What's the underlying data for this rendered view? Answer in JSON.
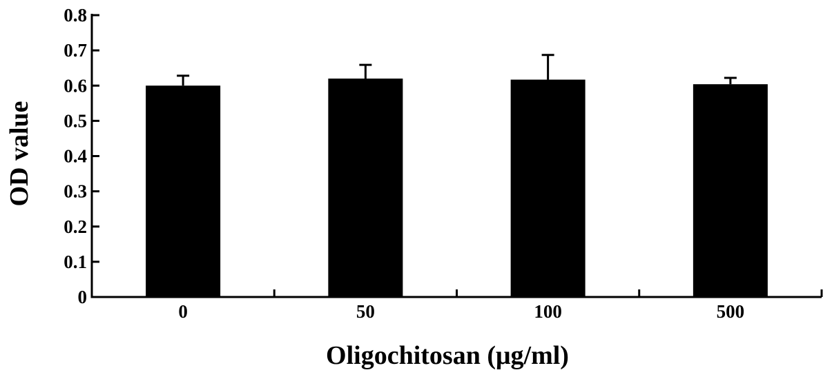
{
  "chart_data": {
    "type": "bar",
    "title": "",
    "xlabel": "Oligochitosan (μg/ml)",
    "ylabel": "OD value",
    "categories": [
      "0",
      "50",
      "100",
      "500"
    ],
    "series": [
      {
        "values": [
          0.6,
          0.62,
          0.617,
          0.604
        ],
        "error": [
          0.028,
          0.039,
          0.07,
          0.018
        ]
      }
    ],
    "ylim": [
      0,
      0.8
    ],
    "yticks": [
      "0",
      "0.1",
      "0.2",
      "0.3",
      "0.4",
      "0.5",
      "0.6",
      "0.7",
      "0.8"
    ],
    "grid": false,
    "legend": "none",
    "colors": {
      "bar": "#000000",
      "axis": "#000000",
      "background": "#ffffff"
    }
  }
}
